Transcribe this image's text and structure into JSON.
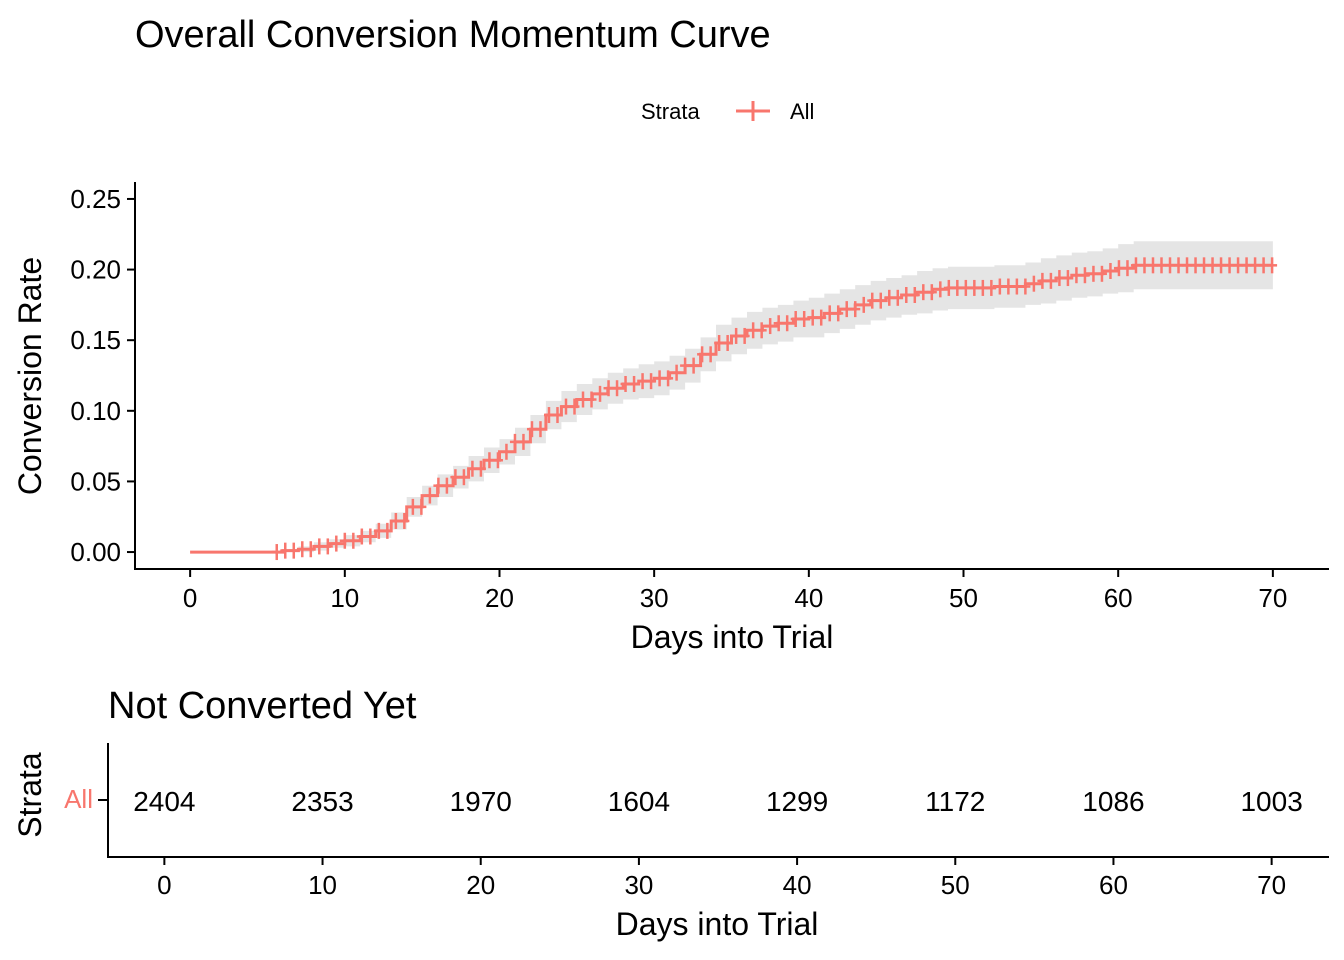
{
  "colors": {
    "series": "#F8766D",
    "band": "#E5E5E5",
    "axis": "#000000"
  },
  "legend": {
    "title": "Strata",
    "position": "top"
  },
  "chart_data": {
    "type": "line",
    "title": "Overall Conversion Momentum Curve",
    "xlabel": "Days into Trial",
    "ylabel": "Conversion Rate",
    "xlim": [
      -3.5,
      73.5
    ],
    "ylim": [
      -0.012,
      0.262
    ],
    "xticks": [
      0,
      10,
      20,
      30,
      40,
      50,
      60,
      70
    ],
    "yticks": [
      0.0,
      0.05,
      0.1,
      0.15,
      0.2,
      0.25
    ],
    "ytick_labels": [
      "0.00",
      "0.05",
      "0.10",
      "0.15",
      "0.20",
      "0.25"
    ],
    "grid": false,
    "series": [
      {
        "name": "All",
        "step": true,
        "x": [
          0,
          5.5,
          6,
          7,
          8,
          9,
          10,
          11,
          12,
          13,
          14,
          15,
          16,
          17,
          18,
          19,
          20,
          21,
          22,
          23,
          24,
          25,
          26,
          27,
          28,
          29,
          30,
          31,
          32,
          33,
          34,
          35,
          36,
          37,
          38,
          39,
          40,
          41,
          42,
          43,
          44,
          45,
          46,
          47,
          48,
          49,
          50,
          51,
          52,
          53,
          54,
          55,
          56,
          57,
          58,
          59,
          60,
          61,
          62,
          63,
          64,
          65,
          66,
          67,
          68,
          69,
          70
        ],
        "y": [
          0.0,
          0.0,
          0.001,
          0.002,
          0.004,
          0.006,
          0.008,
          0.011,
          0.015,
          0.022,
          0.032,
          0.04,
          0.047,
          0.053,
          0.059,
          0.065,
          0.071,
          0.078,
          0.087,
          0.097,
          0.103,
          0.108,
          0.112,
          0.116,
          0.119,
          0.121,
          0.123,
          0.127,
          0.132,
          0.14,
          0.148,
          0.153,
          0.157,
          0.16,
          0.162,
          0.165,
          0.166,
          0.169,
          0.172,
          0.175,
          0.178,
          0.18,
          0.182,
          0.184,
          0.186,
          0.187,
          0.187,
          0.187,
          0.188,
          0.188,
          0.19,
          0.192,
          0.194,
          0.196,
          0.197,
          0.199,
          0.201,
          0.203,
          0.203,
          0.203,
          0.203,
          0.203,
          0.203,
          0.203,
          0.203,
          0.203,
          0.203
        ],
        "ci_halfwidth": [
          0.0,
          0.0,
          0.001,
          0.002,
          0.003,
          0.003,
          0.004,
          0.004,
          0.005,
          0.006,
          0.007,
          0.007,
          0.008,
          0.008,
          0.009,
          0.009,
          0.009,
          0.01,
          0.01,
          0.01,
          0.011,
          0.011,
          0.011,
          0.011,
          0.011,
          0.012,
          0.012,
          0.012,
          0.012,
          0.012,
          0.013,
          0.013,
          0.013,
          0.013,
          0.013,
          0.013,
          0.014,
          0.014,
          0.014,
          0.014,
          0.014,
          0.014,
          0.014,
          0.015,
          0.015,
          0.015,
          0.015,
          0.015,
          0.015,
          0.015,
          0.015,
          0.016,
          0.016,
          0.016,
          0.016,
          0.016,
          0.017,
          0.017,
          0.017,
          0.017,
          0.017,
          0.017,
          0.017,
          0.017,
          0.017,
          0.017,
          0.017
        ]
      }
    ]
  },
  "risk_table": {
    "title": "Not Converted Yet",
    "ylabel": "Strata",
    "xlabel": "Days into Trial",
    "xlim": [
      -3.5,
      73.5
    ],
    "xticks": [
      0,
      10,
      20,
      30,
      40,
      50,
      60,
      70
    ],
    "strata": "All",
    "counts": [
      {
        "x": 0,
        "label": "2404"
      },
      {
        "x": 10,
        "label": "2353"
      },
      {
        "x": 20,
        "label": "1970"
      },
      {
        "x": 30,
        "label": "1604"
      },
      {
        "x": 40,
        "label": "1299"
      },
      {
        "x": 50,
        "label": "1172"
      },
      {
        "x": 60,
        "label": "1086"
      },
      {
        "x": 70,
        "label": "1003"
      }
    ]
  }
}
